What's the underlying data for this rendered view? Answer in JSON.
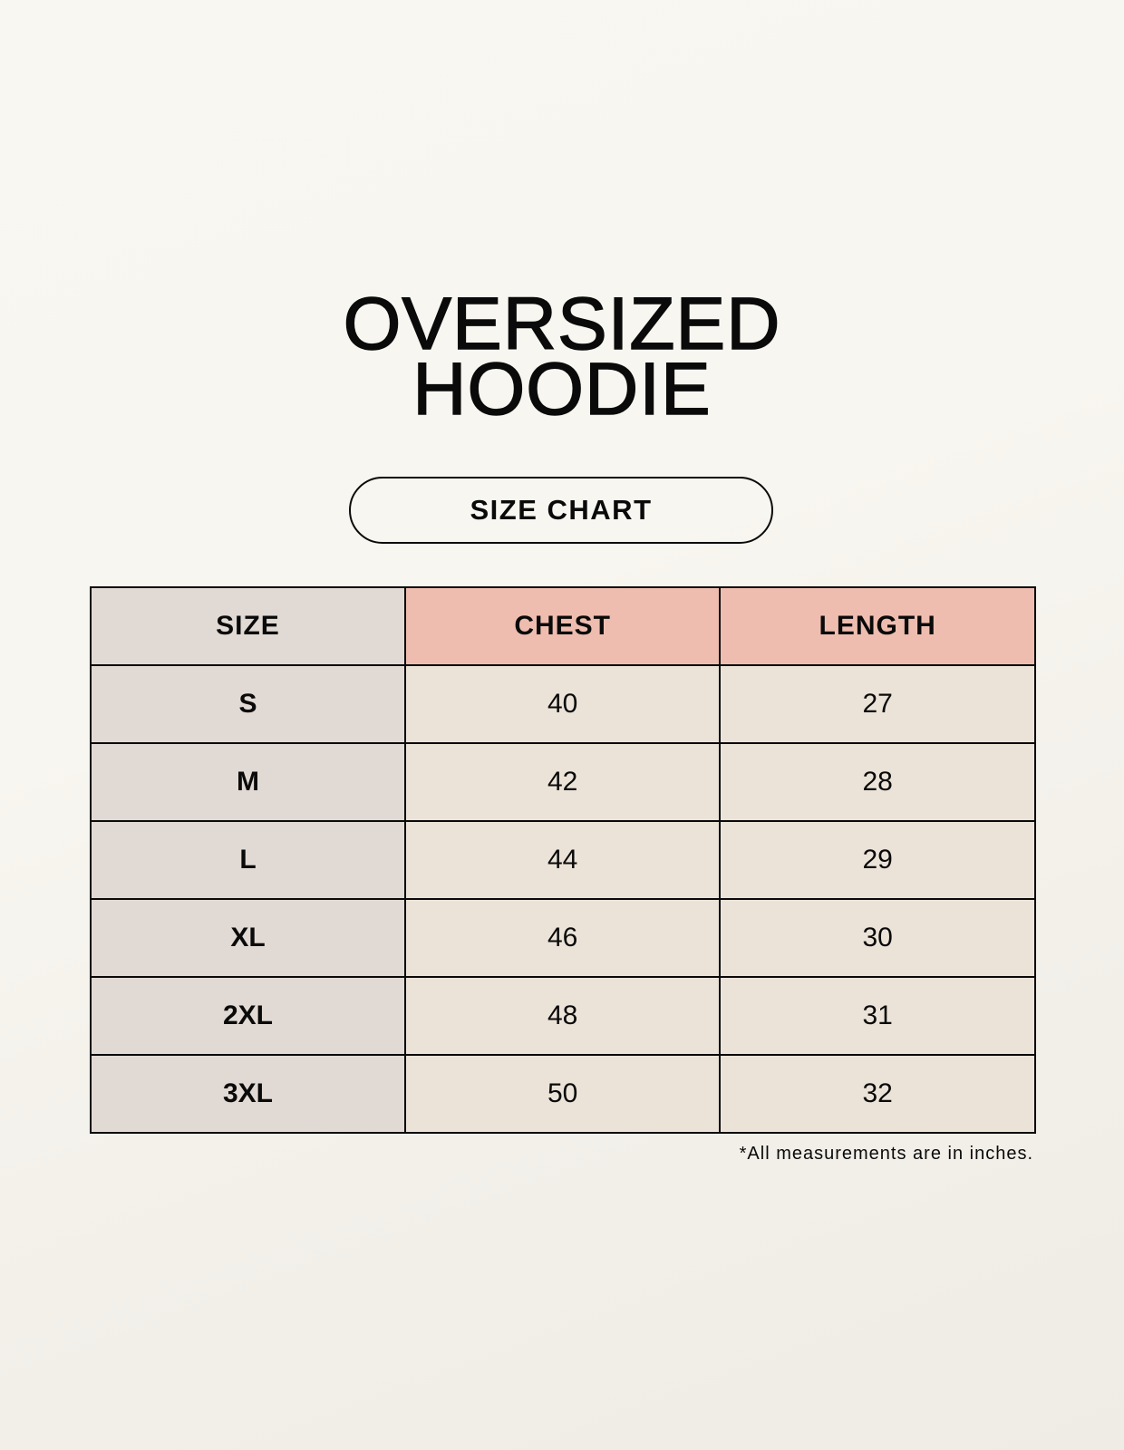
{
  "title": {
    "line1": "OVERSIZED",
    "line2": "HOODIE"
  },
  "subtitle": "SIZE CHART",
  "table": {
    "headers": [
      "SIZE",
      "CHEST",
      "LENGTH"
    ],
    "rows": [
      [
        "S",
        "40",
        "27"
      ],
      [
        "M",
        "42",
        "28"
      ],
      [
        "L",
        "44",
        "29"
      ],
      [
        "XL",
        "46",
        "30"
      ],
      [
        "2XL",
        "48",
        "31"
      ],
      [
        "3XL",
        "50",
        "32"
      ]
    ]
  },
  "footnote": "*All measurements are in inches.",
  "colors": {
    "size_column": "#e1d9d3",
    "header_accent": "#eebdaf",
    "cell": "#ebe3d8",
    "background": "#f8f6f0"
  }
}
